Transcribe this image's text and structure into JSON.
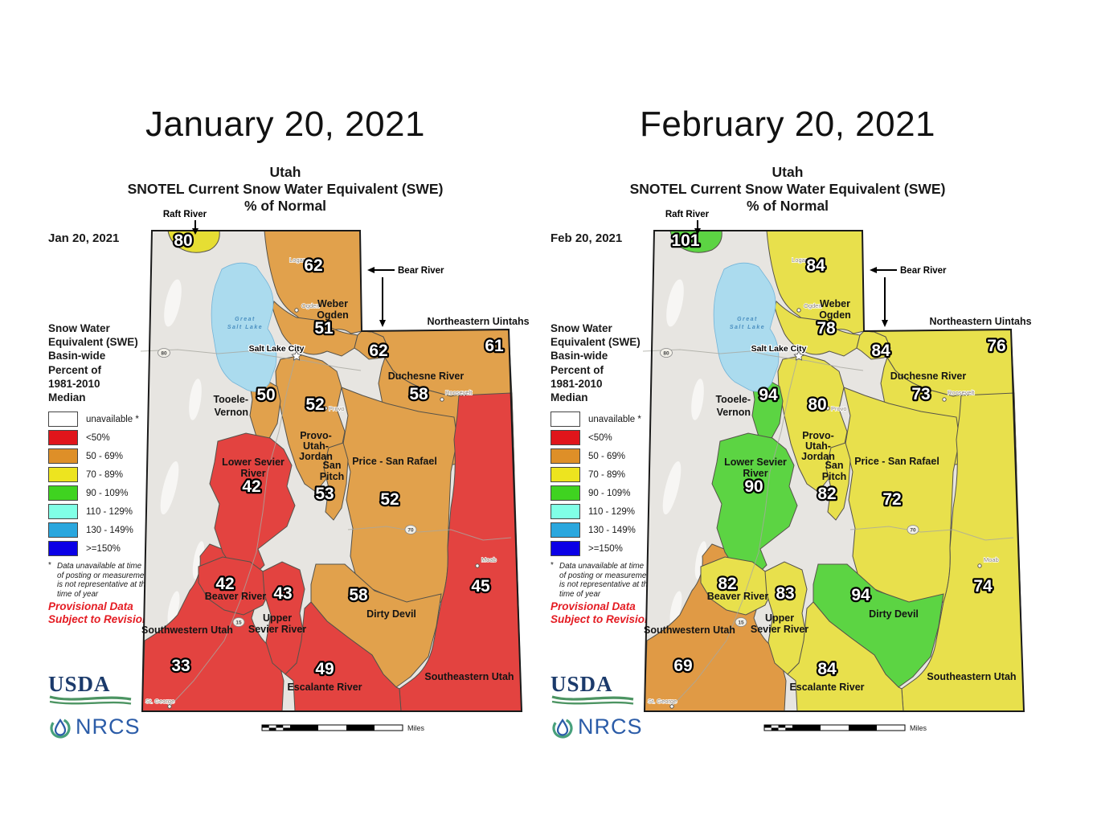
{
  "map_title": {
    "line1": "Utah",
    "line2": "SNOTEL Current Snow Water Equivalent (SWE)",
    "line3": "% of Normal"
  },
  "maps": [
    {
      "title": "January 20, 2021",
      "date_label": "Jan 20, 2021",
      "values": {
        "raft_river": "80",
        "bear_river": "62",
        "bear_river_east": "62",
        "weber_ogden": "51",
        "northeastern_uintahs": "61",
        "duchesne_river": "58",
        "tooele_vernon": "50",
        "provo_utah_jordan": "52",
        "price_san_rafael": "52",
        "lower_sevier_river": "42",
        "san_pitch": "53",
        "southeastern_utah": "45",
        "beaver_river": "42",
        "upper_sevier_river": "43",
        "dirty_devil": "58",
        "southwestern_utah": "33",
        "escalante_river": "49"
      },
      "colors": {
        "raft_river": "#E6DE33",
        "bear_river": "#E1A14C",
        "bear_river_east": "#E1A14C",
        "weber_ogden": "#E1A14C",
        "northeastern_uintahs": "#E1A14C",
        "duchesne_river": "#E1A14C",
        "tooele_vernon": "#E1A14C",
        "provo_utah_jordan": "#E1A14C",
        "price_san_rafael": "#E1A14C",
        "lower_sevier_river": "#E34340",
        "san_pitch": "#E1A14C",
        "southeastern_utah": "#E34340",
        "beaver_river": "#E34340",
        "upper_sevier_river": "#E34340",
        "dirty_devil": "#E1A14C",
        "southwestern_utah": "#E34340",
        "escalante_river": "#E34340"
      }
    },
    {
      "title": "February 20, 2021",
      "date_label": "Feb 20, 2021",
      "values": {
        "raft_river": "101",
        "bear_river": "84",
        "bear_river_east": "84",
        "weber_ogden": "78",
        "northeastern_uintahs": "76",
        "duchesne_river": "73",
        "tooele_vernon": "94",
        "provo_utah_jordan": "80",
        "price_san_rafael": "72",
        "lower_sevier_river": "90",
        "san_pitch": "82",
        "southeastern_utah": "74",
        "beaver_river": "82",
        "upper_sevier_river": "83",
        "dirty_devil": "94",
        "southwestern_utah": "69",
        "escalante_river": "84"
      },
      "colors": {
        "raft_river": "#5CD443",
        "bear_river": "#E8E04C",
        "bear_river_east": "#E8E04C",
        "weber_ogden": "#E8E04C",
        "northeastern_uintahs": "#E8E04C",
        "duchesne_river": "#E8E04C",
        "tooele_vernon": "#5CD443",
        "provo_utah_jordan": "#E8E04C",
        "price_san_rafael": "#E8E04C",
        "lower_sevier_river": "#5CD443",
        "san_pitch": "#E8E04C",
        "southeastern_utah": "#E8E04C",
        "beaver_river": "#E8E04C",
        "upper_sevier_river": "#E8E04C",
        "dirty_devil": "#5CD443",
        "southwestern_utah": "#E09A45",
        "escalante_river": "#E8E04C"
      }
    }
  ],
  "basin_labels": {
    "raft_river": "Raft River",
    "bear_river": "Bear River",
    "weber_1": "Weber",
    "weber_2": "Ogden",
    "northeastern_uintahs": "Northeastern Uintahs",
    "duchesne_river": "Duchesne River",
    "tooele_1": "Tooele-",
    "tooele_2": "Vernon",
    "provo_1": "Provo-",
    "provo_2": "Utah-",
    "provo_3": "Jordan",
    "price_san_rafael": "Price - San Rafael",
    "lower_sevier_1": "Lower Sevier",
    "lower_sevier_2": "River",
    "san_pitch_1": "San",
    "san_pitch_2": "Pitch",
    "southeastern_utah": "Southeastern Utah",
    "beaver_river": "Beaver River",
    "upper_sevier_1": "Upper",
    "upper_sevier_2": "Sevier River",
    "dirty_devil": "Dirty Devil",
    "southwestern_utah": "Southwestern Utah",
    "escalante_river": "Escalante River"
  },
  "legend": {
    "title_lines": [
      "Snow Water",
      "Equivalent (SWE)",
      "Basin-wide",
      "Percent of",
      "1981-2010",
      "Median"
    ],
    "items": [
      {
        "label": "unavailable *",
        "color": "#FFFFFF"
      },
      {
        "label": "<50%",
        "color": "#E0151B"
      },
      {
        "label": "50 - 69%",
        "color": "#DE8F28"
      },
      {
        "label": "70 - 89%",
        "color": "#EDE41F"
      },
      {
        "label": "90 - 109%",
        "color": "#3FD320"
      },
      {
        "label": "110 - 129%",
        "color": "#80FFE6"
      },
      {
        "label": "130 - 149%",
        "color": "#2AA7DE"
      },
      {
        "label": ">=150%",
        "color": "#0B00E6"
      }
    ]
  },
  "footnote": {
    "asterisk": "*",
    "lines": [
      "Data unavailable at time",
      "of posting or measurement",
      "is not representative at this",
      "time of year"
    ]
  },
  "provisional": [
    "Provisional Data",
    "Subject to Revision"
  ],
  "logos": {
    "usda": "USDA",
    "nrcs": "NRCS"
  },
  "scalebar": {
    "ticks": [
      "0",
      "10",
      "20",
      "40",
      "60",
      "80",
      "100"
    ],
    "unit": "Miles"
  },
  "cities": {
    "logan": "Logan",
    "ogden": "Ogden",
    "salt_lake_city": "Salt Lake City",
    "provo": "Provo",
    "roosevelt": "Roosevelt",
    "moab": "Moab",
    "st_george": "St. George"
  },
  "lake": {
    "line1": "Great",
    "line2": "Salt Lake"
  },
  "roads": {
    "i80": "80",
    "i15": "15",
    "i70": "70"
  }
}
